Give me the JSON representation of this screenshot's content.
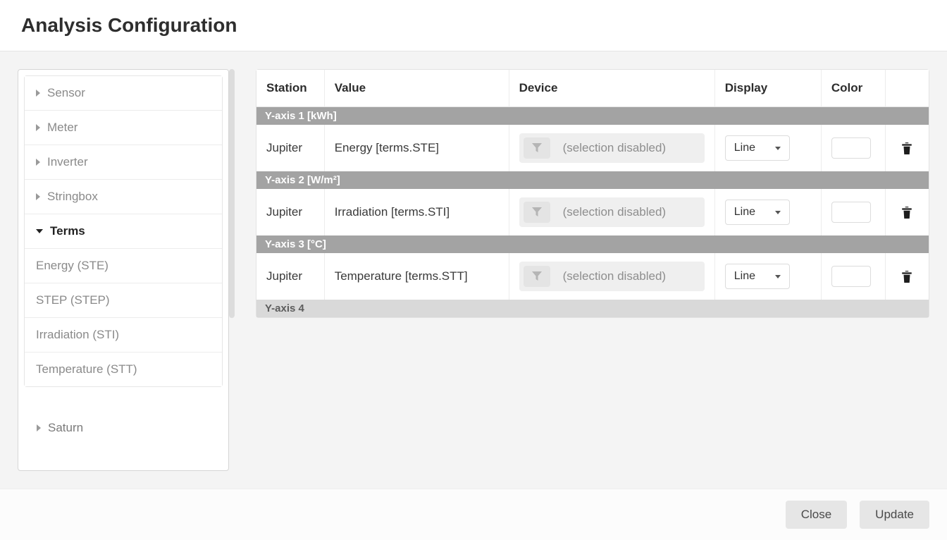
{
  "header": {
    "title": "Analysis Configuration"
  },
  "sidebar": {
    "groups": [
      {
        "label": "Sensor",
        "expanded": false
      },
      {
        "label": "Meter",
        "expanded": false
      },
      {
        "label": "Inverter",
        "expanded": false
      },
      {
        "label": "Stringbox",
        "expanded": false
      },
      {
        "label": "Terms",
        "expanded": true,
        "children": [
          {
            "label": "Energy (STE)"
          },
          {
            "label": "STEP (STEP)"
          },
          {
            "label": "Irradiation (STI)"
          },
          {
            "label": "Temperature (STT)"
          }
        ]
      }
    ],
    "extra": {
      "label": "Saturn"
    }
  },
  "table": {
    "columns": {
      "station": "Station",
      "value": "Value",
      "device": "Device",
      "display": "Display",
      "color": "Color"
    },
    "device_disabled_text": "(selection disabled)",
    "axes": [
      {
        "label": "Y-axis 1 [kWh]",
        "rows": [
          {
            "station": "Jupiter",
            "value": "Energy [terms.STE]",
            "display": "Line",
            "color": "#ffffff"
          }
        ]
      },
      {
        "label": "Y-axis 2 [W/m²]",
        "rows": [
          {
            "station": "Jupiter",
            "value": "Irradiation [terms.STI]",
            "display": "Line",
            "color": "#ffffff"
          }
        ]
      },
      {
        "label": "Y-axis 3 [°C]",
        "rows": [
          {
            "station": "Jupiter",
            "value": "Temperature [terms.STT]",
            "display": "Line",
            "color": "#ffffff"
          }
        ]
      },
      {
        "label": "Y-axis 4",
        "rows": []
      }
    ]
  },
  "footer": {
    "close": "Close",
    "update": "Update"
  },
  "colors": {
    "axis_header_bg": "#a3a3a3",
    "axis_empty_bg": "#d9d9d9",
    "body_bg": "#f4f4f4",
    "border": "#e3e3e3"
  }
}
